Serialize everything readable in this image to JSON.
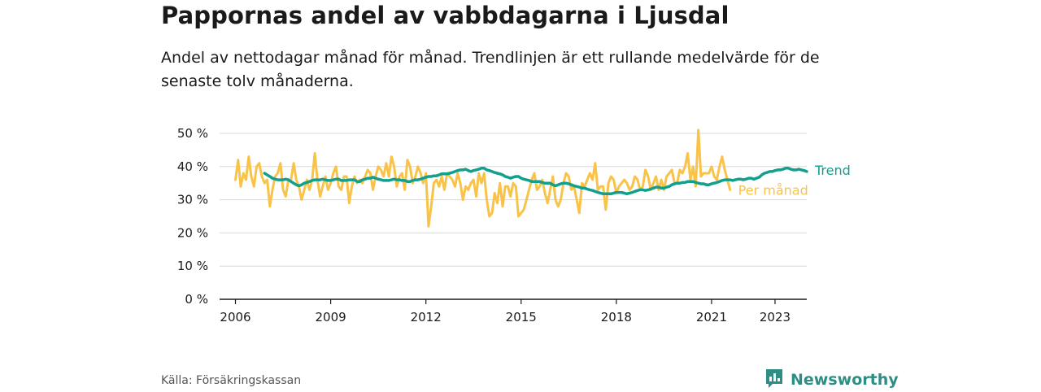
{
  "title": "Pappornas andel av vabbdagarna i Ljusdal",
  "subtitle": "Andel av nettodagar månad för månad. Trendlinjen är ett rullande medelvärde för de senaste tolv månaderna.",
  "source": "Källa: Försäkringskassan",
  "brand": {
    "name": "Newsworthy",
    "logo_icon": "bar-chart-speech-bubble-icon"
  },
  "colors": {
    "trend": "#12a08d",
    "monthly": "#f9c349",
    "grid": "#d8d8d8",
    "axis": "#1a1a1a",
    "brand": "#2e8d84"
  },
  "chart_data": {
    "type": "line",
    "title": "Pappornas andel av vabbdagarna i Ljusdal",
    "xlabel": "",
    "ylabel": "",
    "x_ticks": [
      "2006",
      "2009",
      "2012",
      "2015",
      "2018",
      "2021",
      "2023"
    ],
    "y_ticks": [
      "0 %",
      "10 %",
      "20 %",
      "30 %",
      "40 %",
      "50 %"
    ],
    "ylim": [
      0,
      50
    ],
    "grid": true,
    "legend": "inline labels at line ends, right",
    "series": [
      {
        "name": "Per månad",
        "x_start": "2006-01",
        "frequency": "monthly",
        "values": [
          36,
          42,
          34,
          38,
          36,
          43,
          37,
          34,
          40,
          41,
          37,
          35,
          36,
          28,
          33,
          37,
          38,
          41,
          33,
          31,
          36,
          36,
          41,
          36,
          34,
          30,
          33,
          36,
          33,
          36,
          44,
          36,
          31,
          34,
          37,
          33,
          35,
          38,
          40,
          34,
          33,
          37,
          37,
          29,
          34,
          37,
          35,
          36,
          35,
          37,
          39,
          38,
          33,
          37,
          40,
          39,
          37,
          41,
          37,
          43,
          40,
          34,
          37,
          38,
          33,
          42,
          40,
          35,
          37,
          40,
          38,
          35,
          38,
          22,
          28,
          35,
          36,
          34,
          37,
          33,
          38,
          37,
          36,
          34,
          38,
          35,
          30,
          34,
          33,
          35,
          36,
          31,
          38,
          35,
          38,
          30,
          25,
          26,
          32,
          29,
          35,
          28,
          34,
          34,
          31,
          35,
          34,
          25,
          26,
          27,
          30,
          33,
          36,
          38,
          33,
          34,
          36,
          32,
          29,
          33,
          37,
          30,
          28,
          30,
          35,
          38,
          37,
          33,
          34,
          30,
          26,
          35,
          34,
          36,
          38,
          36,
          41,
          33,
          34,
          34,
          27,
          35,
          37,
          36,
          32,
          34,
          35,
          36,
          35,
          33,
          34,
          37,
          36,
          33,
          34,
          39,
          37,
          33,
          35,
          37,
          33,
          36,
          33,
          37,
          38,
          39,
          35,
          35,
          39,
          38,
          40,
          44,
          36,
          40,
          34,
          51,
          37,
          38,
          38,
          38,
          40,
          37,
          36,
          40,
          43,
          39,
          36,
          33
        ]
      },
      {
        "name": "Trend",
        "x_start": "2006-12",
        "frequency": "monthly",
        "values": [
          38,
          37.5,
          37,
          36.5,
          36.2,
          36,
          36,
          36,
          36.2,
          36,
          35.5,
          35,
          34.5,
          34.2,
          34.5,
          35,
          35.2,
          35.5,
          35.8,
          36,
          36,
          36,
          36.2,
          36,
          35.8,
          35.8,
          36,
          36.2,
          36.2,
          35.8,
          35.8,
          35.8,
          36,
          36,
          36,
          35.5,
          35.5,
          36,
          36.2,
          36.5,
          36.5,
          36.8,
          36.5,
          36.2,
          36,
          35.8,
          35.8,
          35.8,
          36,
          36.2,
          36,
          36,
          35.8,
          35.8,
          35.5,
          35.5,
          35.8,
          36,
          36,
          36.2,
          36.5,
          36.8,
          37,
          37,
          37.2,
          37.2,
          37.5,
          37.8,
          37.8,
          37.8,
          38,
          38.2,
          38.5,
          38.8,
          39,
          39,
          39.2,
          38.8,
          38.5,
          38.8,
          39,
          39.2,
          39.5,
          39.5,
          39,
          38.8,
          38.5,
          38.2,
          38,
          37.8,
          37.5,
          37,
          36.8,
          36.5,
          36.8,
          37,
          37,
          36.5,
          36.2,
          36,
          35.8,
          35.5,
          35.5,
          35.5,
          35.5,
          35.2,
          35,
          35,
          35,
          34.5,
          34.2,
          34.5,
          34.8,
          35,
          35,
          34.8,
          34.5,
          34.2,
          34,
          33.8,
          33.5,
          33.5,
          33.2,
          33,
          32.8,
          32.5,
          32.2,
          32,
          31.8,
          31.8,
          31.8,
          31.8,
          32,
          32.2,
          32.2,
          32.2,
          32,
          31.8,
          32,
          32.2,
          32.5,
          32.8,
          33,
          33,
          32.8,
          33,
          33.2,
          33.5,
          33.8,
          33.8,
          33.5,
          33.5,
          33.8,
          34,
          34.5,
          34.8,
          35,
          35,
          35.2,
          35.2,
          35.5,
          35.5,
          35.5,
          35.2,
          35,
          34.8,
          34.8,
          34.5,
          34.5,
          34.8,
          35,
          35.2,
          35.5,
          35.8,
          36,
          36,
          36,
          35.8,
          36,
          36.2,
          36.2,
          36,
          36.2,
          36.5,
          36.5,
          36.2,
          36.5,
          36.8,
          37.5,
          38,
          38.2,
          38.5,
          38.5,
          38.8,
          39,
          39,
          39.2,
          39.5,
          39.5,
          39.2,
          39,
          39,
          39.2,
          39,
          38.8,
          38.5
        ]
      }
    ]
  }
}
